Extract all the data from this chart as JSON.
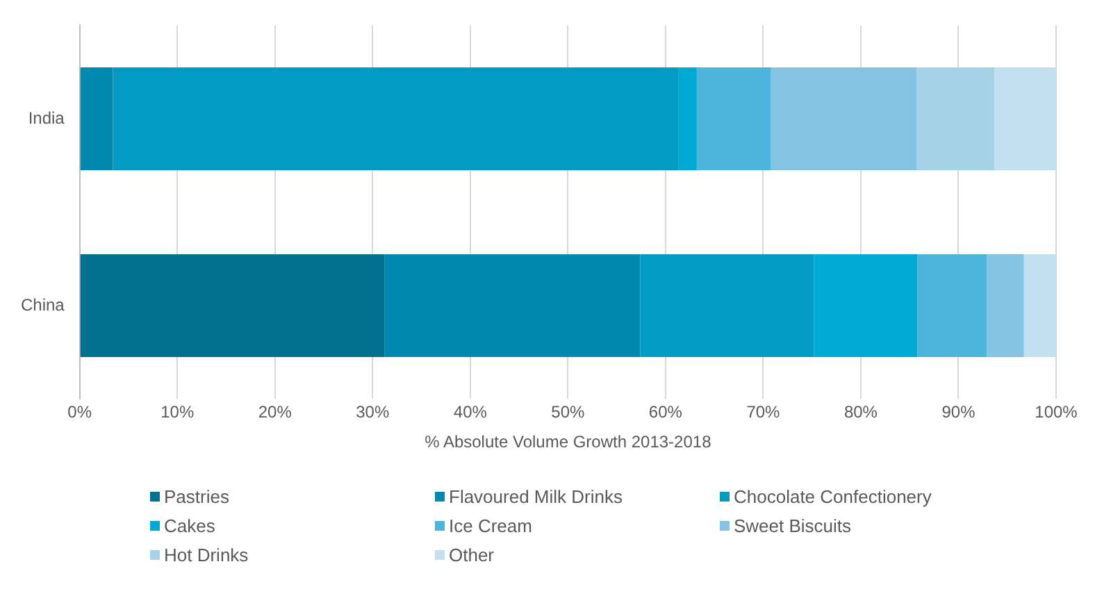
{
  "chart_data": {
    "type": "bar",
    "orientation": "horizontal",
    "stacked": true,
    "xlabel": "% Absolute Volume Growth 2013-2018",
    "categories": [
      "India",
      "China"
    ],
    "xlim": [
      0,
      100
    ],
    "xticks": [
      {
        "value": 0,
        "label": "0%"
      },
      {
        "value": 10,
        "label": "10%"
      },
      {
        "value": 20,
        "label": "20%"
      },
      {
        "value": 30,
        "label": "30%"
      },
      {
        "value": 40,
        "label": "40%"
      },
      {
        "value": 50,
        "label": "50%"
      },
      {
        "value": 60,
        "label": "60%"
      },
      {
        "value": 70,
        "label": "70%"
      },
      {
        "value": 80,
        "label": "80%"
      },
      {
        "value": 90,
        "label": "90%"
      },
      {
        "value": 100,
        "label": "100%"
      }
    ],
    "grid": "x",
    "legend": "bottom",
    "series": [
      {
        "name": "Pastries",
        "color": "#00718f",
        "values": [
          0,
          31.2
        ]
      },
      {
        "name": "Flavoured Milk Drinks",
        "color": "#0089ae",
        "values": [
          3.4,
          26.2
        ]
      },
      {
        "name": "Chocolate Confectionery",
        "color": "#039bc3",
        "values": [
          57.9,
          17.8
        ]
      },
      {
        "name": "Cakes",
        "color": "#00a9d3",
        "values": [
          1.9,
          10.6
        ]
      },
      {
        "name": "Ice Cream",
        "color": "#4cb4dd",
        "values": [
          7.6,
          7.1
        ]
      },
      {
        "name": "Sweet Biscuits",
        "color": "#84c4e2",
        "values": [
          14.9,
          3.8
        ]
      },
      {
        "name": "Hot Drinks",
        "color": "#a6d2e8",
        "values": [
          8.0,
          0
        ]
      },
      {
        "name": "Other",
        "color": "#c3e0f1",
        "values": [
          6.3,
          3.3
        ]
      }
    ]
  }
}
